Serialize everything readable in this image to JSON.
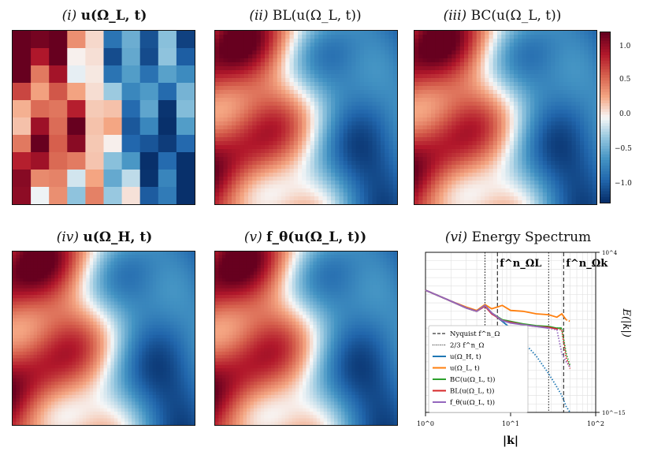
{
  "panels": {
    "p1": {
      "title_prefix": "(i)",
      "title_expr": "u(Ω_L, t)"
    },
    "p2": {
      "title_prefix": "(ii)",
      "title_expr": "BL(u(Ω_L, t))"
    },
    "p3": {
      "title_prefix": "(iii)",
      "title_expr": "BC(u(Ω_L, t))"
    },
    "p4": {
      "title_prefix": "(iv)",
      "title_expr": "u(Ω_H, t)"
    },
    "p5": {
      "title_prefix": "(v)",
      "title_expr": "f_θ(u(Ω_L, t))"
    },
    "p6": {
      "title_prefix": "(vi)",
      "title_expr": "Energy Spectrum"
    }
  },
  "colorbar": {
    "ticks": [
      "1.0",
      "0.5",
      "0.0",
      "−0.5",
      "−1.0"
    ],
    "range": [
      -1.2,
      1.2
    ],
    "colors": [
      "#08306b",
      "#2166ac",
      "#4393c3",
      "#92c5de",
      "#f7f7f7",
      "#f4a582",
      "#d6604d",
      "#b2182b",
      "#67001f"
    ]
  },
  "chart_data": {
    "type": "line",
    "title": "(vi) Energy Spectrum",
    "xlabel": "|k|",
    "ylabel": "E(|k|)",
    "xscale": "log",
    "yscale": "log",
    "xlim": [
      1,
      100
    ],
    "ylim": [
      1e-15,
      10000.0
    ],
    "x_ticks": [
      "10^0",
      "10^1",
      "10^2"
    ],
    "y_ticks": [
      "10^4",
      "10^−15"
    ],
    "vlines": [
      {
        "name": "f_ΩL",
        "x": 7,
        "style": "dashed",
        "label": "f^n_ΩL"
      },
      {
        "name": "2/3 f_ΩL",
        "x": 5,
        "style": "dotted"
      },
      {
        "name": "f_Ωk",
        "x": 42,
        "style": "dashed",
        "label": "f^n_Ωk"
      },
      {
        "name": "2/3 f_Ωk",
        "x": 28,
        "style": "dotted"
      }
    ],
    "legend": {
      "position": "lower-left",
      "entries": [
        {
          "label": "Nyquist f^n_Ω",
          "style": "dashed",
          "color": "#000000"
        },
        {
          "label": "2/3 f^n_Ω",
          "style": "dotted",
          "color": "#000000"
        },
        {
          "label": "u(Ω_H, t)",
          "color": "#1f77b4"
        },
        {
          "label": "u(Ω_L, t)",
          "color": "#ff7f0e"
        },
        {
          "label": "BC(u(Ω_L, t))",
          "color": "#2ca02c"
        },
        {
          "label": "BL(u(Ω_L, t))",
          "color": "#d62728"
        },
        {
          "label": "f_θ(u(Ω_L, t))",
          "color": "#9467bd"
        }
      ]
    },
    "series": [
      {
        "name": "u(Ω_H, t)",
        "color": "#1f77b4",
        "x": [
          1,
          2,
          3,
          4,
          5,
          6,
          8,
          10,
          14,
          20,
          28,
          35,
          40,
          45,
          50
        ],
        "y": [
          -0.5,
          -1.8,
          -2.6,
          -3.0,
          -2.3,
          -3.2,
          -4.2,
          -5.0,
          -6.6,
          -8.3,
          -10.4,
          -12.0,
          -13.0,
          -14.3,
          -15.0
        ]
      },
      {
        "name": "u(Ω_L, t)",
        "color": "#ff7f0e",
        "x": [
          1,
          2,
          3,
          4,
          5,
          6,
          8,
          10,
          14,
          20,
          28,
          35,
          40,
          45,
          50
        ],
        "y": [
          -0.5,
          -1.8,
          -2.5,
          -2.9,
          -2.2,
          -2.7,
          -2.3,
          -2.9,
          -3.0,
          -3.3,
          -3.4,
          -3.7,
          -3.3,
          -4.0,
          -4.2
        ]
      },
      {
        "name": "BC(u(Ω_L, t))",
        "color": "#2ca02c",
        "x": [
          1,
          2,
          3,
          4,
          5,
          6,
          8,
          10,
          14,
          20,
          28,
          35,
          40,
          45,
          50
        ],
        "y": [
          -0.5,
          -1.8,
          -2.6,
          -3.0,
          -2.3,
          -3.2,
          -4.0,
          -4.2,
          -4.5,
          -4.7,
          -4.8,
          -5.0,
          -5.0,
          -8.0,
          -9.5
        ]
      },
      {
        "name": "BL(u(Ω_L, t))",
        "color": "#d62728",
        "x": [
          1,
          2,
          3,
          4,
          5,
          6,
          8,
          10,
          14,
          20,
          28,
          35,
          40,
          45,
          50
        ],
        "y": [
          -0.5,
          -1.8,
          -2.6,
          -3.0,
          -2.4,
          -3.3,
          -4.1,
          -4.3,
          -4.6,
          -4.8,
          -4.9,
          -5.1,
          -5.2,
          -8.5,
          -9.8
        ]
      },
      {
        "name": "f_θ(u(Ω_L, t))",
        "color": "#9467bd",
        "x": [
          1,
          2,
          3,
          4,
          5,
          6,
          8,
          10,
          14,
          20,
          28,
          35,
          40,
          45,
          50
        ],
        "y": [
          -0.5,
          -1.8,
          -2.6,
          -3.0,
          -2.3,
          -3.2,
          -4.1,
          -4.4,
          -4.6,
          -4.8,
          -5.0,
          -5.2,
          -8.0,
          -9.0,
          -9.6
        ]
      }
    ]
  }
}
